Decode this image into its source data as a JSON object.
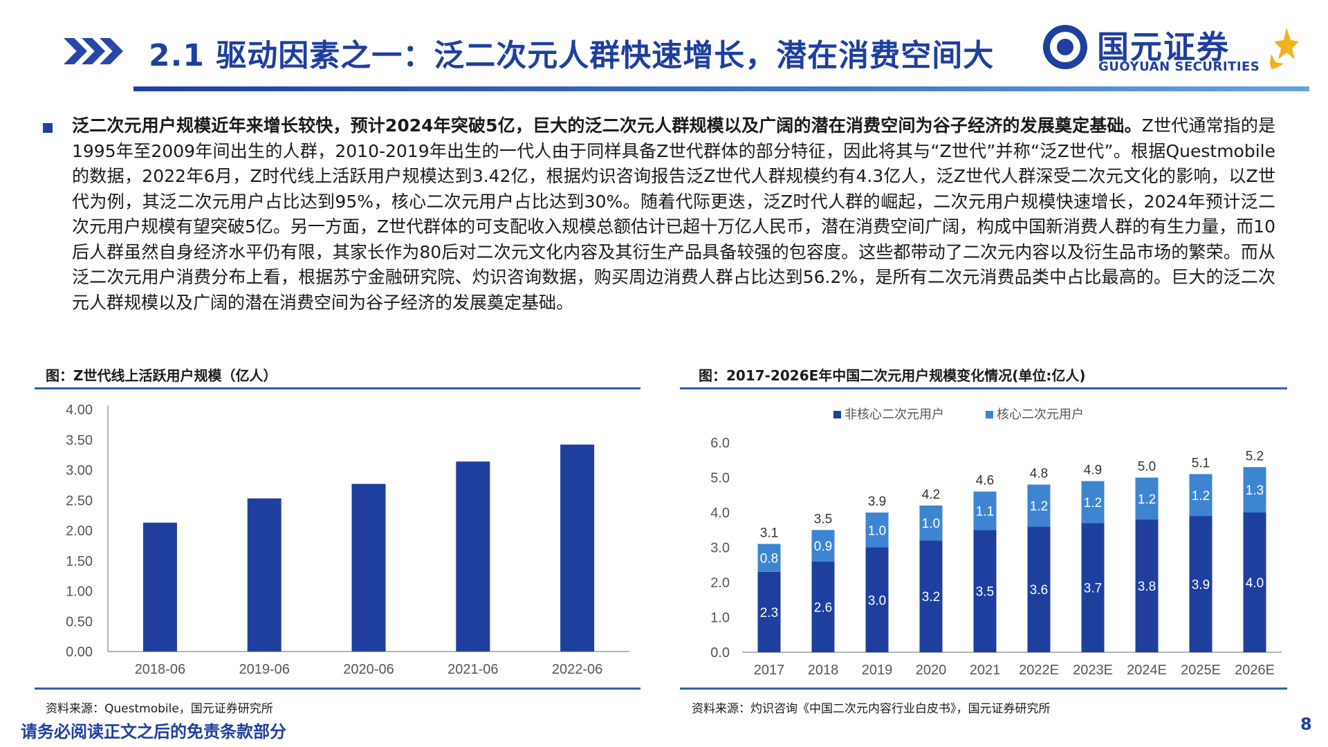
{
  "header": {
    "title": "2.1 驱动因素之一：泛二次元人群快速增长，潜在消费空间大",
    "logo_cn": "国元证券",
    "logo_en": "GUOYUAN SECURITIES"
  },
  "body": {
    "lead_bold": "泛二次元用户规模近年来增长较快，预计2024年突破5亿，巨大的泛二次元人群规模以及广阔的潜在消费空间为谷子经济的发展奠定基础。",
    "text": "Z世代通常指的是1995年至2009年间出生的人群，2010-2019年出生的一代人由于同样具备Z世代群体的部分特征，因此将其与“Z世代”并称“泛Z世代”。根据Questmobile的数据，2022年6月，Z时代线上活跃用户规模达到3.42亿，根据灼识咨询报告泛Z世代人群规模约有4.3亿人，泛Z世代人群深受二次元文化的影响，以Z世代为例，其泛二次元用户占比达到95%，核心二次元用户占比达到30%。随着代际更迭，泛Z时代人群的崛起，二次元用户规模快速增长，2024年预计泛二次元用户规模有望突破5亿。另一方面，Z世代群体的可支配收入规模总额估计已超十万亿人民币，潜在消费空间广阔，构成中国新消费人群的有生力量，而10后人群虽然自身经济水平仍有限，其家长作为80后对二次元文化内容及其衍生产品具备较强的包容度。这些都带动了二次元内容以及衍生品市场的繁荣。而从泛二次元用户消费分布上看，根据苏宁金融研究院、灼识咨询数据，购买周边消费人群占比达到56.2%，是所有二次元消费品类中占比最高的。巨大的泛二次元人群规模以及广阔的潜在消费空间为谷子经济的发展奠定基础。"
  },
  "left_chart": {
    "caption": "图：Z世代线上活跃用户规模（亿人）",
    "source": "资料来源：Questmobile，国元证券研究所"
  },
  "right_chart": {
    "caption": "图：2017-2026E年中国二次元用户规模变化情况(单位:亿人)",
    "source": "资料来源：灼识咨询《中国二次元内容行业白皮书》，国元证券研究所"
  },
  "footer": {
    "note": "请务必阅读正文之后的免责条款部分",
    "page": "8"
  },
  "colors": {
    "brand": "#1f3f9f",
    "bar_dark": "#1f3f9f",
    "bar_light": "#3d85d0"
  },
  "chart_data": [
    {
      "type": "bar",
      "title": "Z世代线上活跃用户规模（亿人）",
      "categories": [
        "2018-06",
        "2019-06",
        "2020-06",
        "2021-06",
        "2022-06"
      ],
      "values": [
        2.13,
        2.53,
        2.77,
        3.14,
        3.42
      ],
      "yticks": [
        "0.00",
        "0.50",
        "1.00",
        "1.50",
        "2.00",
        "2.50",
        "3.00",
        "3.50",
        "4.00"
      ],
      "ylim": [
        0,
        4
      ],
      "grid": false,
      "legend": "none"
    },
    {
      "type": "bar",
      "stacked": true,
      "title": "2017-2026E年中国二次元用户规模变化情况(单位:亿人)",
      "categories": [
        "2017",
        "2018",
        "2019",
        "2020",
        "2021",
        "2022E",
        "2023E",
        "2024E",
        "2025E",
        "2026E"
      ],
      "series": [
        {
          "name": "非核心二次元用户",
          "values": [
            2.3,
            2.6,
            3.0,
            3.2,
            3.5,
            3.6,
            3.7,
            3.8,
            3.9,
            4.0
          ],
          "labels": [
            "2.3",
            "2.6",
            "3.0",
            "3.2",
            "3.5",
            "3.6",
            "3.7",
            "3.8",
            "3.9",
            "4.0"
          ]
        },
        {
          "name": "核心二次元用户",
          "values": [
            0.8,
            0.9,
            1.0,
            1.0,
            1.1,
            1.2,
            1.2,
            1.2,
            1.2,
            1.3
          ],
          "labels": [
            "0.8",
            "0.9",
            "1.0",
            "1.0",
            "1.1",
            "1.2",
            "1.2",
            "1.2",
            "1.2",
            "1.3"
          ]
        }
      ],
      "totals": [
        "3.1",
        "3.5",
        "3.9",
        "4.2",
        "4.6",
        "4.8",
        "4.9",
        "5.0",
        "5.1",
        "5.2"
      ],
      "yticks": [
        "0.0",
        "1.0",
        "2.0",
        "3.0",
        "4.0",
        "5.0",
        "6.0"
      ],
      "ylim": [
        0,
        6
      ],
      "grid": false,
      "legend": "top"
    }
  ]
}
